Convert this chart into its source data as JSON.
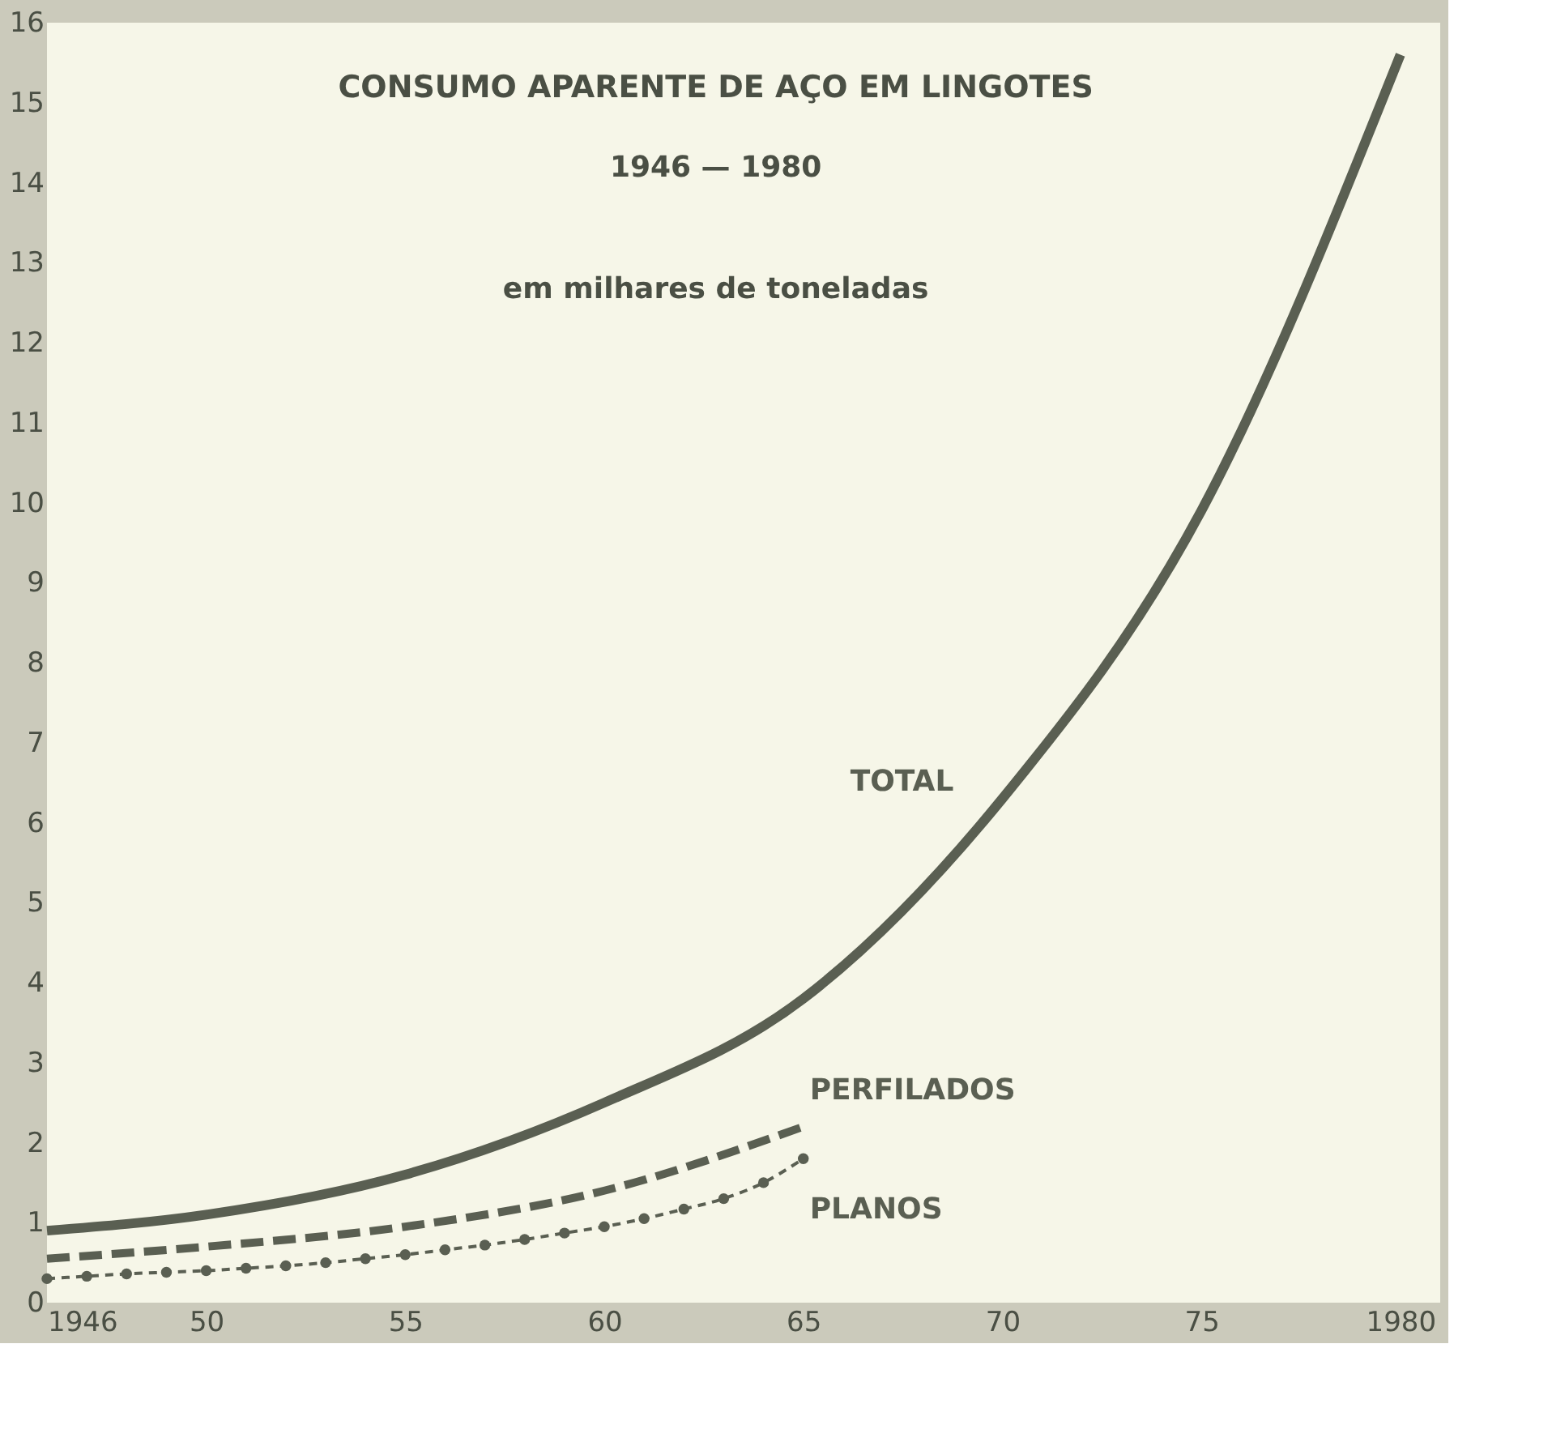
{
  "chart_data": {
    "type": "line",
    "title": "CONSUMO APARENTE DE AÇO EM LINGOTES",
    "subtitle": "1946 — 1980",
    "annotations": [
      "em milhares de toneladas"
    ],
    "xlim": [
      1946,
      1981
    ],
    "ylim": [
      0,
      16
    ],
    "xticks": [
      1946,
      {
        "value": 1950,
        "label": "50"
      },
      {
        "value": 1955,
        "label": "55"
      },
      {
        "value": 1960,
        "label": "60"
      },
      {
        "value": 1965,
        "label": "65"
      },
      {
        "value": 1970,
        "label": "70"
      },
      {
        "value": 1975,
        "label": "75"
      },
      1980
    ],
    "yticks": [
      0,
      1,
      2,
      3,
      4,
      5,
      6,
      7,
      8,
      9,
      10,
      11,
      12,
      13,
      14,
      15,
      16
    ],
    "grid": false,
    "series": [
      {
        "name": "TOTAL",
        "color": "#5a5f52",
        "line_style": "solid",
        "marker": "none",
        "x": [
          1946,
          1950,
          1955,
          1960,
          1965,
          1970,
          1975,
          1980
        ],
        "values": [
          0.9,
          1.1,
          1.6,
          2.5,
          3.8,
          6.3,
          9.9,
          15.6
        ]
      },
      {
        "name": "PERFILADOS",
        "color": "#5a5f52",
        "line_style": "dashed",
        "marker": "none",
        "x": [
          1946,
          1950,
          1955,
          1960,
          1965
        ],
        "values": [
          0.55,
          0.7,
          0.95,
          1.4,
          2.2
        ]
      },
      {
        "name": "PLANOS",
        "color": "#5a5f52",
        "line_style": "dotted",
        "marker": "circle",
        "x": [
          1946,
          1947,
          1948,
          1949,
          1950,
          1951,
          1952,
          1953,
          1954,
          1955,
          1956,
          1957,
          1958,
          1959,
          1960,
          1961,
          1962,
          1963,
          1964,
          1965
        ],
        "values": [
          0.3,
          0.33,
          0.36,
          0.38,
          0.4,
          0.43,
          0.46,
          0.5,
          0.55,
          0.6,
          0.66,
          0.72,
          0.79,
          0.87,
          0.95,
          1.05,
          1.17,
          1.3,
          1.5,
          1.8
        ]
      }
    ]
  }
}
